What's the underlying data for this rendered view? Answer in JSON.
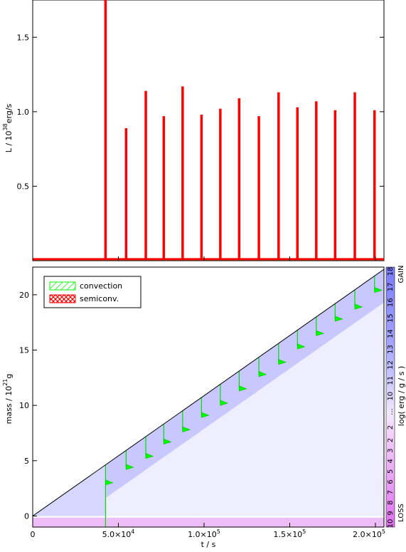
{
  "chart_data": [
    {
      "type": "line",
      "ylabel": "L / 10",
      "ylabel_exp": "38",
      "ylabel_unit": "erg/s",
      "xlim": [
        0,
        205000
      ],
      "ylim": [
        0,
        1.75
      ],
      "yticks": [
        0.5,
        1.0,
        1.5
      ],
      "ytick_labels": [
        "0.5",
        "1.0",
        "1.5"
      ],
      "baseline": 0.01,
      "bursts": [
        {
          "t": 42500,
          "L": 1.8
        },
        {
          "t": 54500,
          "L": 0.89
        },
        {
          "t": 66000,
          "L": 1.14
        },
        {
          "t": 76500,
          "L": 0.97
        },
        {
          "t": 87500,
          "L": 1.17
        },
        {
          "t": 98500,
          "L": 0.98
        },
        {
          "t": 109500,
          "L": 1.02
        },
        {
          "t": 120500,
          "L": 1.09
        },
        {
          "t": 132000,
          "L": 0.97
        },
        {
          "t": 143500,
          "L": 1.13
        },
        {
          "t": 154500,
          "L": 1.03
        },
        {
          "t": 165500,
          "L": 1.07
        },
        {
          "t": 176500,
          "L": 1.01
        },
        {
          "t": 188000,
          "L": 1.13
        },
        {
          "t": 199500,
          "L": 1.01
        }
      ],
      "color": "#ff0000"
    },
    {
      "type": "area",
      "xlabel": "t / s",
      "ylabel": "mass / 10",
      "ylabel_exp": "21",
      "ylabel_unit": "g",
      "xlim": [
        0,
        205000
      ],
      "ylim": [
        -1.0,
        22.5
      ],
      "xticks": [
        0,
        50000,
        100000,
        150000,
        200000
      ],
      "xtick_labels": [
        {
          "mant": "0",
          "exp": ""
        },
        {
          "mant": "5.0×10",
          "exp": "4"
        },
        {
          "mant": "1.0×10",
          "exp": "5"
        },
        {
          "mant": "1.5×10",
          "exp": "5"
        },
        {
          "mant": "2.0×10",
          "exp": "5"
        }
      ],
      "yticks": [
        0,
        5,
        10,
        15,
        20
      ],
      "ytick_labels": [
        "0",
        "5",
        "10",
        "15",
        "20"
      ],
      "surface": {
        "x": [
          0,
          205000
        ],
        "y": [
          0,
          22.3
        ]
      },
      "convection_events": [
        {
          "t": 42500,
          "m": 3.0
        },
        {
          "t": 54500,
          "m": 4.4
        },
        {
          "t": 66000,
          "m": 5.4
        },
        {
          "t": 76500,
          "m": 6.7
        },
        {
          "t": 87500,
          "m": 7.8
        },
        {
          "t": 98500,
          "m": 9.1
        },
        {
          "t": 109500,
          "m": 10.2
        },
        {
          "t": 120500,
          "m": 11.5
        },
        {
          "t": 132000,
          "m": 12.8
        },
        {
          "t": 143500,
          "m": 13.9
        },
        {
          "t": 154500,
          "m": 15.3
        },
        {
          "t": 165500,
          "m": 16.5
        },
        {
          "t": 176500,
          "m": 17.8
        },
        {
          "t": 188000,
          "m": 18.9
        },
        {
          "t": 199500,
          "m": 20.4
        }
      ],
      "legend": {
        "placement": "top-left",
        "entries": [
          {
            "label": "convection",
            "color": "#00ff00",
            "hatch": "diagonal"
          },
          {
            "label": "semiconv.",
            "color": "#ff0000",
            "hatch": "cross"
          }
        ]
      },
      "colorbar": {
        "label": "log( erg / g / s )",
        "top_label": "GAIN",
        "bottom_label": "LOSS",
        "gain_ticks": [
          "18",
          "17",
          "16",
          "15",
          "14",
          "13",
          "12",
          "11",
          "10",
          "...",
          "2"
        ],
        "loss_ticks": [
          "2",
          "3",
          "4",
          "5",
          "6",
          "7",
          "8",
          "9",
          "10"
        ],
        "gain_color": "#7a7aff",
        "loss_color": "#e070f0"
      }
    }
  ]
}
